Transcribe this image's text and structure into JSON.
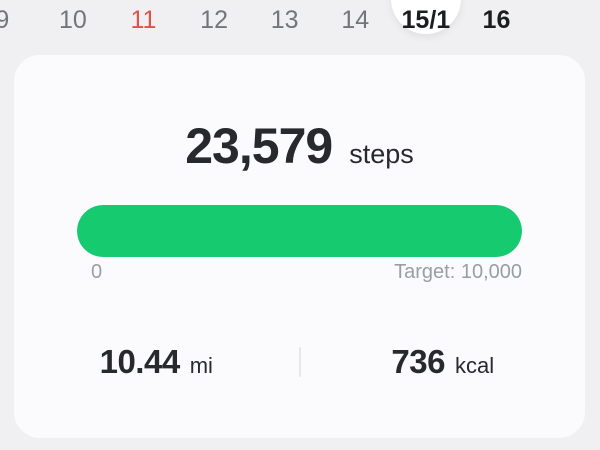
{
  "date_strip": {
    "items": [
      {
        "label": "9",
        "state": "normal"
      },
      {
        "label": "10",
        "state": "normal"
      },
      {
        "label": "11",
        "state": "holiday"
      },
      {
        "label": "12",
        "state": "normal"
      },
      {
        "label": "13",
        "state": "normal"
      },
      {
        "label": "14",
        "state": "normal"
      },
      {
        "label": "15/1",
        "state": "selected"
      },
      {
        "label": "16",
        "state": "emphasized"
      }
    ]
  },
  "card": {
    "steps_value": "23,579",
    "steps_unit": "steps",
    "progress": {
      "percent": 100,
      "min_label": "0",
      "target_label": "Target: 10,000"
    },
    "stats": [
      {
        "value": "10.44",
        "unit": "mi"
      },
      {
        "value": "736",
        "unit": "kcal"
      }
    ]
  },
  "colors": {
    "bg": "#f0f0f2",
    "card": "#fbfbfd",
    "green": "#16ca70",
    "red": "#d6564d",
    "dark": "#27292c",
    "date-gray": "#72767b",
    "label-gray": "#999ea3",
    "divider": "#e7e7ea"
  }
}
